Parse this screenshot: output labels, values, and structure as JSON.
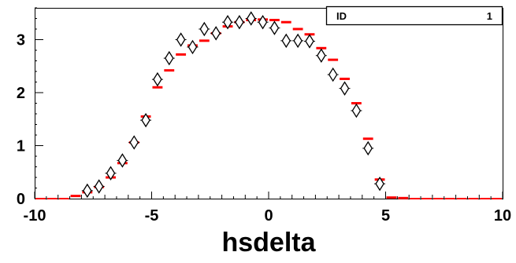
{
  "chart_data": {
    "type": "scatter",
    "title": "",
    "xlabel": "hsdelta",
    "ylabel": "",
    "xlim": [
      -10,
      10
    ],
    "ylim": [
      0,
      3.6
    ],
    "x_ticks": [
      -10,
      -5,
      0,
      5,
      10
    ],
    "x_tick_labels": [
      "-10",
      "-5",
      "0",
      "5",
      "10"
    ],
    "y_ticks": [
      0,
      1,
      2,
      3
    ],
    "y_tick_labels": [
      "0",
      "1",
      "2",
      "3"
    ],
    "legend": {
      "position": "top-right",
      "label": "ID",
      "value": "1"
    },
    "grid": false,
    "colors": {
      "histogram": "#ff0000",
      "markers": "#000000",
      "axes": "#000000"
    },
    "series": [
      {
        "style": "red-bar-histogram",
        "x": [
          -9.75,
          -9.25,
          -8.75,
          -8.25,
          -7.75,
          -7.25,
          -6.75,
          -6.25,
          -5.75,
          -5.25,
          -4.75,
          -4.25,
          -3.75,
          -3.25,
          -2.75,
          -2.25,
          -1.75,
          -1.25,
          -0.75,
          -0.25,
          0.25,
          0.75,
          1.25,
          1.75,
          2.25,
          2.75,
          3.25,
          3.75,
          4.25,
          4.75,
          5.25,
          5.75,
          6.25,
          6.75,
          7.25,
          7.75,
          8.25,
          8.75,
          9.25,
          9.75
        ],
        "values": [
          0,
          0,
          0,
          0.05,
          0.12,
          0.22,
          0.4,
          0.67,
          1.06,
          1.55,
          2.1,
          2.42,
          2.72,
          2.89,
          2.98,
          3.12,
          3.25,
          3.33,
          3.37,
          3.38,
          3.37,
          3.33,
          3.2,
          3.1,
          2.84,
          2.62,
          2.26,
          1.8,
          1.13,
          0.36,
          0.02,
          0.01,
          0,
          0,
          0,
          0,
          0,
          0,
          0,
          0
        ]
      },
      {
        "style": "open-diamond-markers",
        "x": [
          -7.75,
          -7.25,
          -6.75,
          -6.25,
          -5.75,
          -5.25,
          -4.75,
          -4.25,
          -3.75,
          -3.25,
          -2.75,
          -2.25,
          -1.75,
          -1.25,
          -0.75,
          -0.25,
          0.25,
          0.75,
          1.25,
          1.75,
          2.25,
          2.75,
          3.25,
          3.75,
          4.25,
          4.75
        ],
        "values": [
          0.15,
          0.23,
          0.48,
          0.72,
          1.06,
          1.48,
          2.25,
          2.65,
          3.0,
          2.86,
          3.2,
          3.12,
          3.33,
          3.33,
          3.4,
          3.33,
          3.22,
          2.98,
          2.98,
          2.97,
          2.7,
          2.34,
          2.08,
          1.66,
          0.95,
          0.28
        ]
      }
    ]
  }
}
